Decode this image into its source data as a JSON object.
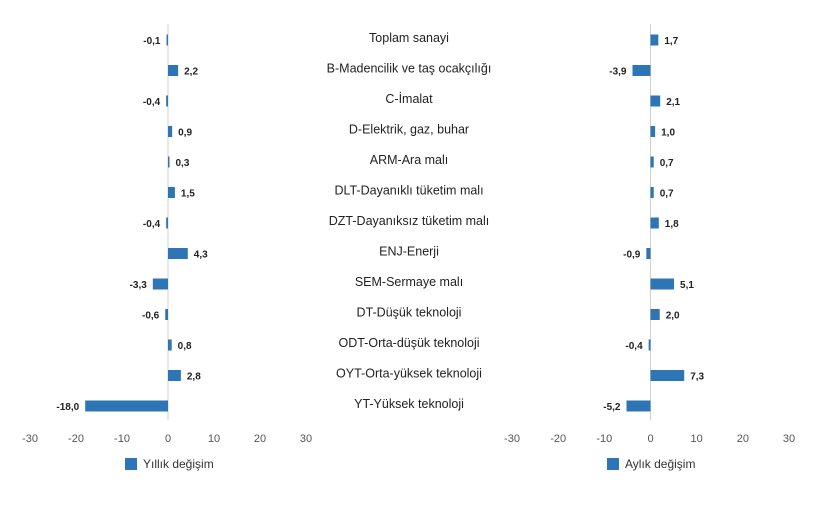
{
  "chart_data": [
    {
      "type": "bar",
      "orientation": "horizontal",
      "categories": [
        "Toplam sanayi",
        "B-Madencilik ve taş ocakçılığı",
        "C-İmalat",
        "D-Elektrik, gaz, buhar",
        "ARM-Ara malı",
        "DLT-Dayanıklı tüketim malı",
        "DZT-Dayanıksız tüketim malı",
        "ENJ-Enerji",
        "SEM-Sermaye malı",
        "DT-Düşük teknoloji",
        "ODT-Orta-düşük teknoloji",
        "OYT-Orta-yüksek teknoloji",
        "YT-Yüksek teknoloji"
      ],
      "series": [
        {
          "name": "Yıllık değişim",
          "color": "#2e75b6",
          "values": [
            -0.1,
            2.2,
            -0.4,
            0.9,
            0.3,
            1.5,
            -0.4,
            4.3,
            -3.3,
            -0.6,
            0.8,
            2.8,
            -18.0
          ],
          "labels": [
            "-0,1",
            "2,2",
            "-0,4",
            "0,9",
            "0,3",
            "1,5",
            "-0,4",
            "4,3",
            "-3,3",
            "-0,6",
            "0,8",
            "2,8",
            "-18,0"
          ]
        }
      ],
      "xlim": [
        -30,
        30
      ],
      "ticks": [
        -30,
        -20,
        -10,
        0,
        10,
        20,
        30
      ],
      "tick_labels": [
        "-30",
        "-20",
        "-10",
        "0",
        "10",
        "20",
        "30"
      ],
      "grid": false,
      "legend": "bottom-left"
    },
    {
      "type": "bar",
      "orientation": "horizontal",
      "categories": [
        "Toplam sanayi",
        "B-Madencilik ve taş ocakçılığı",
        "C-İmalat",
        "D-Elektrik, gaz, buhar",
        "ARM-Ara malı",
        "DLT-Dayanıklı tüketim malı",
        "DZT-Dayanıksız tüketim malı",
        "ENJ-Enerji",
        "SEM-Sermaye malı",
        "DT-Düşük teknoloji",
        "ODT-Orta-düşük teknoloji",
        "OYT-Orta-yüksek teknoloji",
        "YT-Yüksek teknoloji"
      ],
      "series": [
        {
          "name": "Aylık değişim",
          "color": "#2e75b6",
          "values": [
            1.7,
            -3.9,
            2.1,
            1.0,
            0.7,
            0.7,
            1.8,
            -0.9,
            5.1,
            2.0,
            -0.4,
            7.3,
            -5.2
          ],
          "labels": [
            "1,7",
            "-3,9",
            "2,1",
            "1,0",
            "0,7",
            "0,7",
            "1,8",
            "-0,9",
            "5,1",
            "2,0",
            "-0,4",
            "7,3",
            "-5,2"
          ]
        }
      ],
      "xlim": [
        -30,
        30
      ],
      "ticks": [
        -30,
        -20,
        -10,
        0,
        10,
        20,
        30
      ],
      "tick_labels": [
        "-30",
        "-20",
        "-10",
        "0",
        "10",
        "20",
        "30"
      ],
      "grid": false,
      "legend": "bottom-left"
    }
  ]
}
